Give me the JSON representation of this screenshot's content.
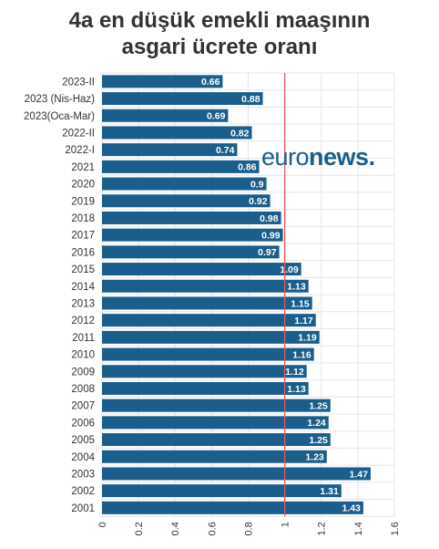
{
  "title_lines": [
    "4a en düşük emekli maaşının",
    "asgari ücrete oranı"
  ],
  "logo": {
    "part1": "euro",
    "part2": "news",
    "dot": "."
  },
  "colors": {
    "bar": "#1b5e8c",
    "reference_line": "#e8585a",
    "grid": "#e6e6e6",
    "text": "#333333"
  },
  "chart_data": {
    "type": "bar",
    "orientation": "horizontal",
    "title": "4a en düşük emekli maaşının asgari ücrete oranı",
    "xlabel": "",
    "ylabel": "",
    "categories": [
      "2023-II",
      "2023 (Nis-Haz)",
      "2023(Oca-Mar)",
      "2022-II",
      "2022-I",
      "2021",
      "2020",
      "2019",
      "2018",
      "2017",
      "2016",
      "2015",
      "2014",
      "2013",
      "2012",
      "2011",
      "2010",
      "2009",
      "2008",
      "2007",
      "2006",
      "2005",
      "2004",
      "2003",
      "2002",
      "2001"
    ],
    "values": [
      0.66,
      0.88,
      0.69,
      0.82,
      0.74,
      0.86,
      0.9,
      0.92,
      0.98,
      0.99,
      0.97,
      1.09,
      1.13,
      1.15,
      1.17,
      1.19,
      1.16,
      1.12,
      1.13,
      1.25,
      1.24,
      1.25,
      1.23,
      1.47,
      1.31,
      1.43
    ],
    "xlim": [
      0,
      1.6
    ],
    "xticks": [
      0,
      0.2,
      0.4,
      0.6,
      0.8,
      1,
      1.2,
      1.4,
      1.6
    ],
    "reference_line": 1,
    "grid": true
  }
}
